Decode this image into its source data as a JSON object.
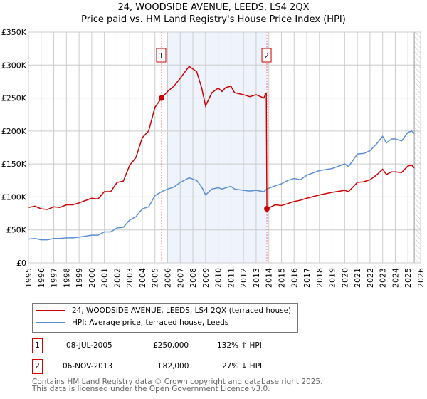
{
  "chart_data": {
    "type": "line",
    "title": "24, WOODSIDE AVENUE, LEEDS, LS4 2QX",
    "subtitle": "Price paid vs. HM Land Registry's House Price Index (HPI)",
    "xlim": [
      1995,
      2026
    ],
    "ylim": [
      0,
      350000
    ],
    "yticks": [
      {
        "v": 0,
        "l": "£0"
      },
      {
        "v": 50000,
        "l": "£50K"
      },
      {
        "v": 100000,
        "l": "£100K"
      },
      {
        "v": 150000,
        "l": "£150K"
      },
      {
        "v": 200000,
        "l": "£200K"
      },
      {
        "v": 250000,
        "l": "£250K"
      },
      {
        "v": 300000,
        "l": "£300K"
      },
      {
        "v": 350000,
        "l": "£350K"
      }
    ],
    "xticks": [
      "1995",
      "1996",
      "1997",
      "1998",
      "1999",
      "2000",
      "2001",
      "2002",
      "2003",
      "2004",
      "2005",
      "2006",
      "2007",
      "2008",
      "2009",
      "2010",
      "2011",
      "2012",
      "2013",
      "2014",
      "2015",
      "2016",
      "2017",
      "2018",
      "2019",
      "2020",
      "2021",
      "2022",
      "2023",
      "2024",
      "2025",
      "2026"
    ],
    "shaded_range": [
      2006.0,
      2013.85
    ],
    "hatched_from": 2025.5,
    "series": [
      {
        "name": "24, WOODSIDE AVENUE, LEEDS, LS4 2QX (terraced house)",
        "color": "#cc0000",
        "x": [
          1995,
          1995.5,
          1996,
          1996.5,
          1997,
          1997.5,
          1998,
          1998.5,
          1999,
          2000,
          2000.5,
          2001,
          2001.5,
          2002,
          2002.5,
          2003,
          2003.5,
          2004,
          2004.5,
          2005,
          2005.52,
          2006,
          2006.5,
          2007,
          2007.7,
          2008.3,
          2008.7,
          2009,
          2009.5,
          2010,
          2010.3,
          2010.6,
          2011,
          2011.3,
          2012,
          2012.5,
          2013,
          2013.6,
          2013.8,
          2013.85,
          2014.5,
          2015,
          2015.5,
          2016,
          2016.5,
          2017,
          2018,
          2019,
          2020,
          2020.3,
          2021,
          2021.5,
          2022,
          2022.5,
          2023,
          2023.3,
          2023.7,
          2024,
          2024.5,
          2025,
          2025.3,
          2025.5
        ],
        "values": [
          84,
          86,
          82,
          81,
          85,
          84,
          88,
          88,
          91,
          98,
          97,
          108,
          108,
          122,
          124,
          148,
          160,
          190,
          200,
          236,
          250,
          260,
          268,
          280,
          298,
          290,
          265,
          238,
          258,
          265,
          260,
          266,
          268,
          258,
          255,
          252,
          255,
          250,
          258,
          82,
          88,
          87,
          90,
          93,
          95,
          98,
          103,
          107,
          110,
          108,
          122,
          123,
          126,
          133,
          142,
          134,
          138,
          138,
          137,
          147,
          148,
          144
        ]
      },
      {
        "name": "HPI: Average price, terraced house, Leeds",
        "color": "#5b8fd4",
        "x": [
          1995,
          1995.5,
          1996,
          1996.5,
          1997,
          1997.5,
          1998,
          1998.5,
          1999,
          2000,
          2000.5,
          2001,
          2001.5,
          2002,
          2002.5,
          2003,
          2003.5,
          2004,
          2004.5,
          2005,
          2005.52,
          2006,
          2006.5,
          2007,
          2007.7,
          2008.3,
          2008.7,
          2009,
          2009.5,
          2010,
          2010.3,
          2010.6,
          2011,
          2011.3,
          2012,
          2012.5,
          2013,
          2013.6,
          2013.85,
          2014.5,
          2015,
          2015.5,
          2016,
          2016.5,
          2017,
          2018,
          2019,
          2020,
          2020.3,
          2021,
          2021.5,
          2022,
          2022.5,
          2023,
          2023.3,
          2023.7,
          2024,
          2024.5,
          2025,
          2025.3,
          2025.5
        ],
        "values": [
          36,
          37,
          35,
          35,
          37,
          37,
          38,
          38,
          39,
          42,
          42,
          47,
          47,
          53,
          54,
          65,
          70,
          82,
          85,
          102,
          108,
          112,
          115,
          122,
          129,
          125,
          115,
          103,
          112,
          114,
          112,
          114,
          116,
          112,
          110,
          109,
          110,
          108,
          112,
          117,
          120,
          125,
          128,
          126,
          133,
          140,
          143,
          150,
          146,
          165,
          166,
          170,
          180,
          192,
          182,
          188,
          188,
          185,
          198,
          200,
          196
        ]
      }
    ],
    "sales": [
      {
        "id": "1",
        "x": 2005.52,
        "value": 250,
        "date": "08-JUL-2005",
        "price": "£250,000",
        "hpi": "132% ↑ HPI"
      },
      {
        "id": "2",
        "x": 2013.85,
        "value": 82,
        "date": "06-NOV-2013",
        "price": "£82,000",
        "hpi": "27% ↓ HPI"
      }
    ],
    "footer": [
      "Contains HM Land Registry data © Crown copyright and database right 2025.",
      "This data is licensed under the Open Government Licence v3.0."
    ]
  }
}
